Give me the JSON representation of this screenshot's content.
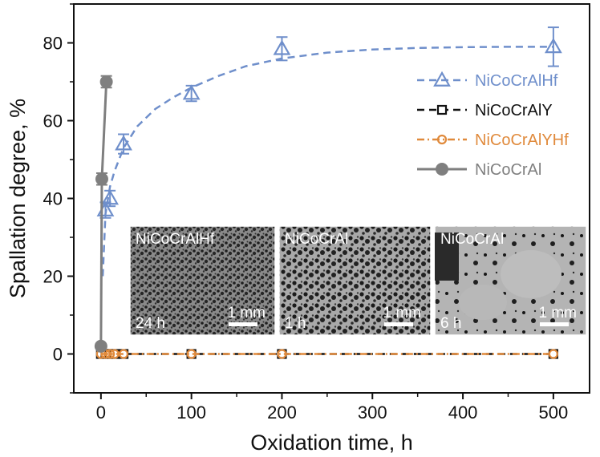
{
  "chart_data": {
    "type": "line",
    "title": "",
    "xlabel": "Oxidation time, h",
    "ylabel": "Spallation degree, %",
    "xlim": [
      -30,
      540
    ],
    "ylim": [
      -10,
      90
    ],
    "xticks": [
      0,
      100,
      200,
      300,
      400,
      500
    ],
    "yticks": [
      0,
      20,
      40,
      60,
      80
    ],
    "x_tick_labels": [
      "0",
      "100",
      "200",
      "300",
      "400",
      "500"
    ],
    "y_tick_labels": [
      "0",
      "20",
      "40",
      "60",
      "80"
    ],
    "grid": false,
    "legend_position": "right",
    "series": [
      {
        "name": "NiCoCrAlHf",
        "color": "#6f8fcb",
        "marker": "triangle",
        "line": "dashed",
        "x": [
          5,
          10,
          25,
          100,
          200,
          500
        ],
        "y": [
          37,
          40,
          54,
          67,
          78.5,
          79
        ],
        "err": [
          2,
          2,
          2.5,
          2,
          3,
          5
        ],
        "fit_curve": {
          "x": [
            2,
            5,
            10,
            15,
            25,
            40,
            60,
            80,
            100,
            130,
            160,
            200,
            250,
            300,
            350,
            400,
            450,
            500
          ],
          "y": [
            20,
            36,
            43,
            47,
            53,
            58.5,
            63,
            66,
            68.5,
            71.5,
            74,
            76,
            77.5,
            78.3,
            78.7,
            78.9,
            79,
            79
          ]
        }
      },
      {
        "name": "NiCoCrAlY",
        "color": "#111111",
        "marker": "square",
        "line": "dashed",
        "x": [
          0,
          5,
          10,
          15,
          25,
          100,
          200,
          500
        ],
        "y": [
          0,
          0,
          0,
          0,
          0,
          0,
          0,
          0
        ],
        "err": []
      },
      {
        "name": "NiCoCrAlYHf",
        "color": "#e08a3c",
        "marker": "circle-open",
        "line": "dash-dot",
        "x": [
          0,
          5,
          10,
          15,
          25,
          100,
          200,
          500
        ],
        "y": [
          0,
          0,
          0,
          0,
          0,
          0,
          0,
          0
        ],
        "err": []
      },
      {
        "name": "NiCoCrAl",
        "color": "#7f7f7f",
        "marker": "circle-filled",
        "line": "solid",
        "x": [
          0,
          1,
          6
        ],
        "y": [
          2,
          45,
          70
        ],
        "err": [
          0,
          1.5,
          1.5
        ]
      }
    ],
    "insets": [
      {
        "label": "NiCoCrAlHf",
        "time": "24 h",
        "scale": "1 mm",
        "tone": "dense"
      },
      {
        "label": "NiCoCrAl",
        "time": "1 h",
        "scale": "1 mm",
        "tone": "mixed"
      },
      {
        "label": "NiCoCrAl",
        "time": "6 h",
        "scale": "1 mm",
        "tone": "coarse"
      }
    ]
  }
}
